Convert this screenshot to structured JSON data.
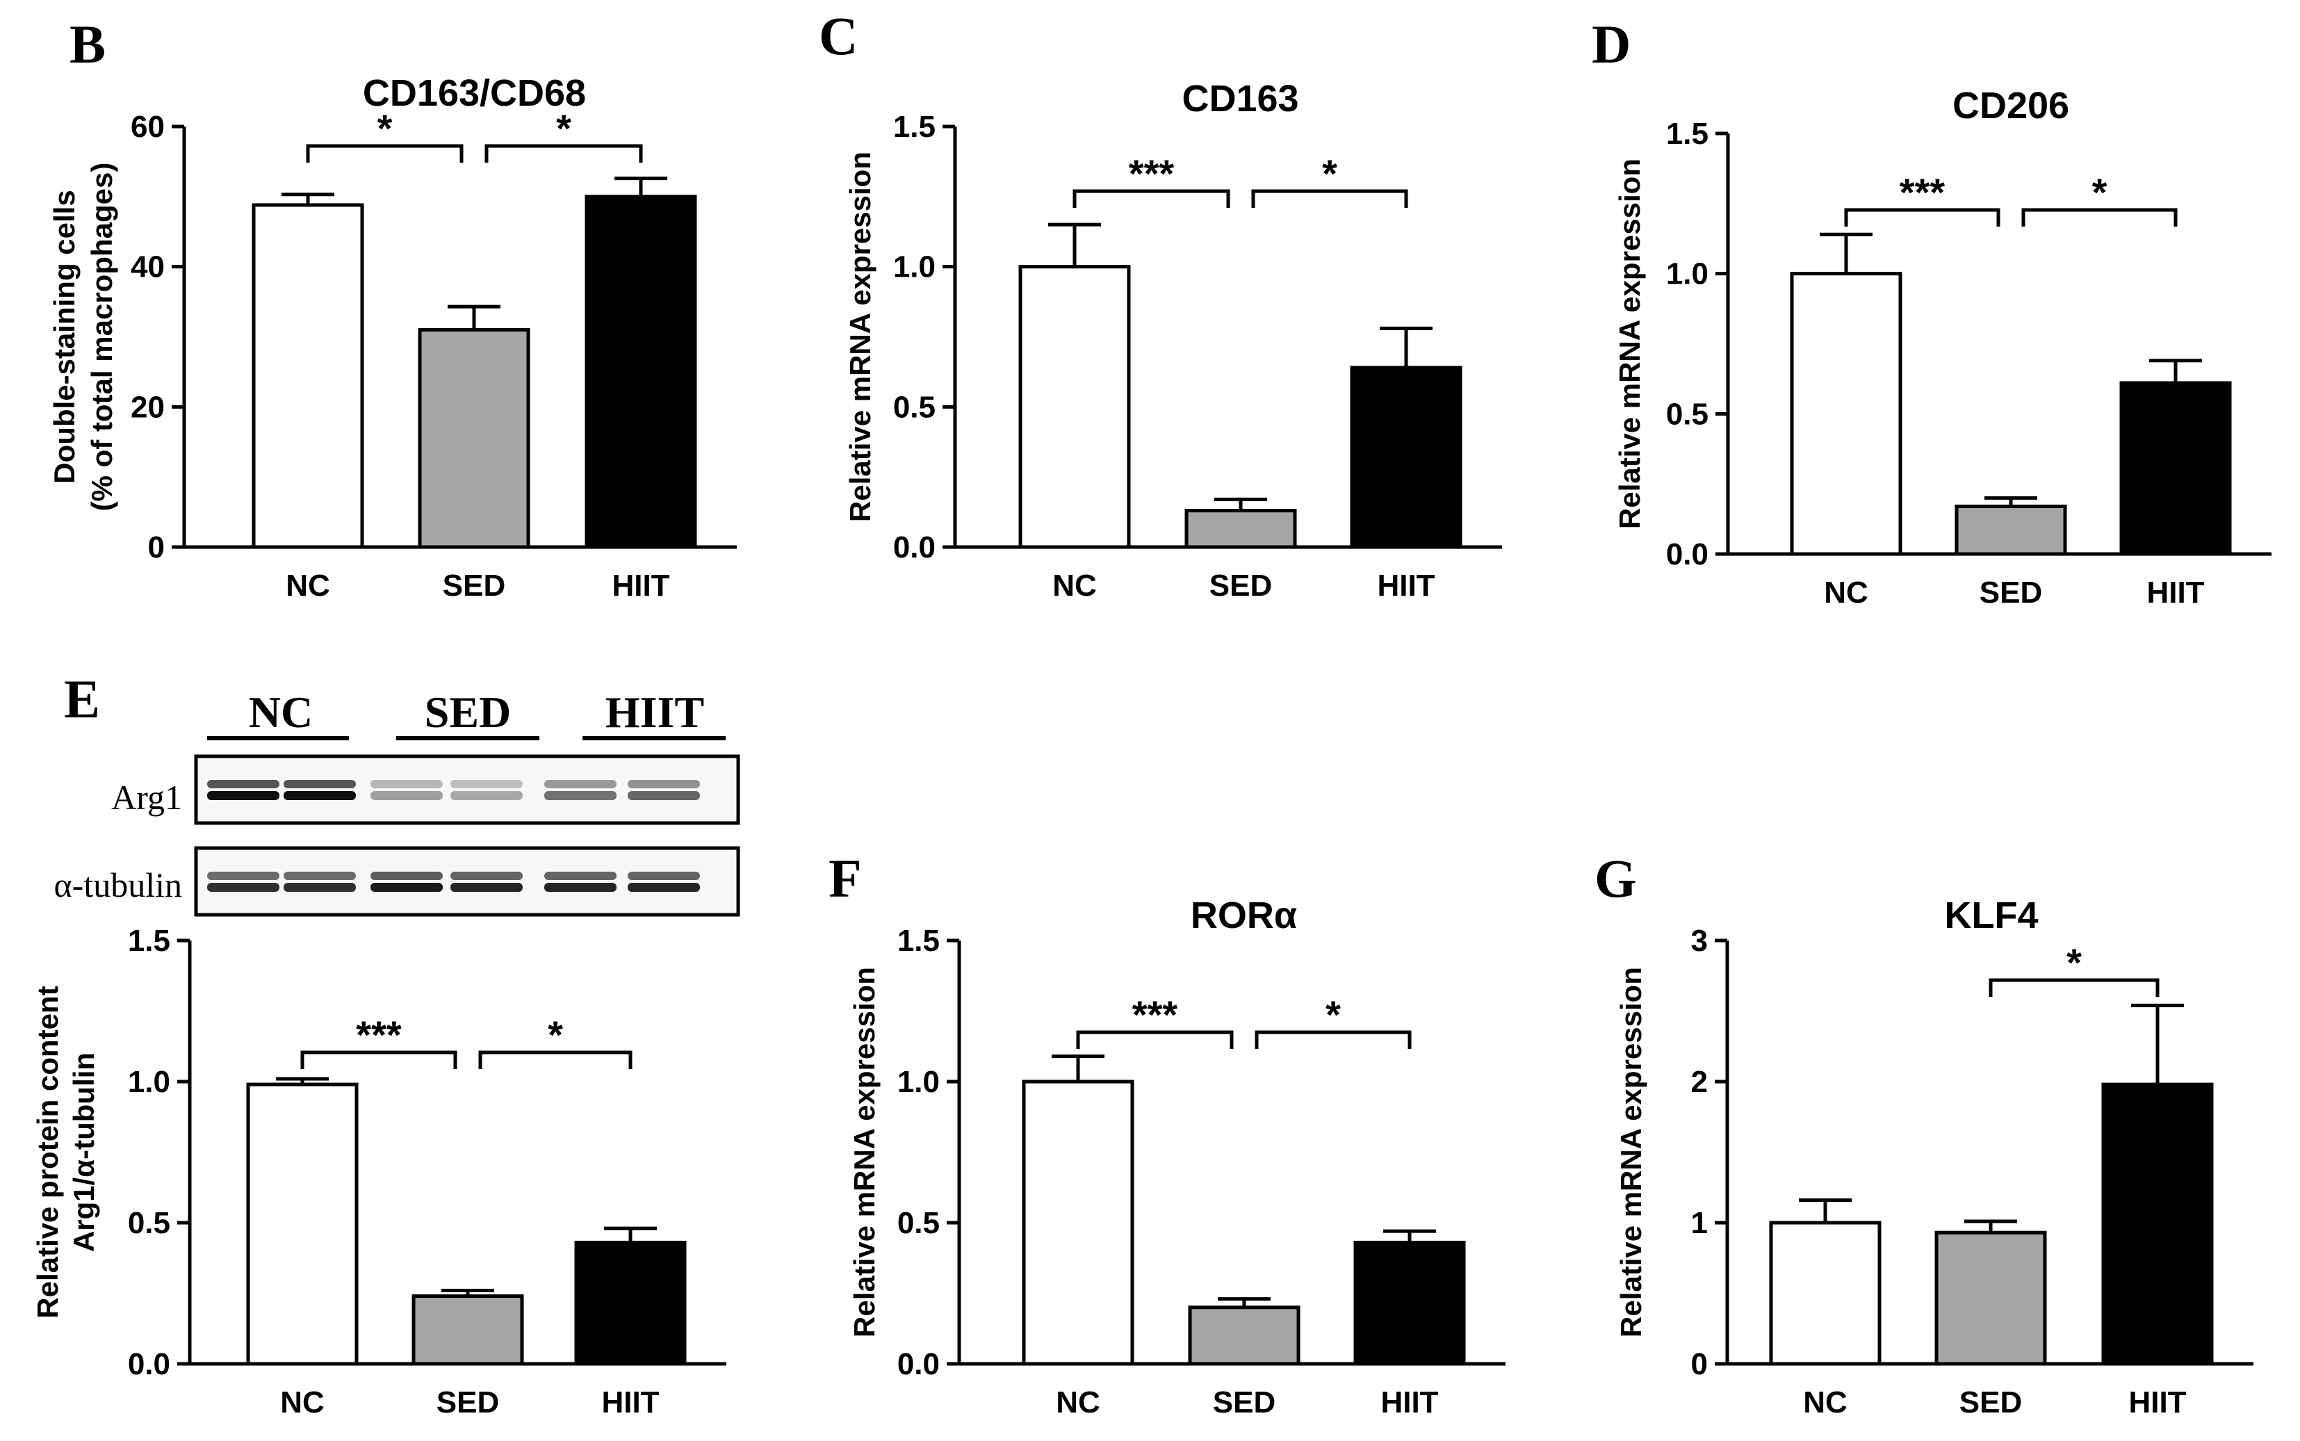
{
  "colors": {
    "NC": "#ffffff",
    "SED": "#a6a6a6",
    "HIIT": "#000000",
    "stroke": "#000000"
  },
  "chart_data": [
    {
      "panel": "B",
      "type": "bar",
      "title": "CD163/CD68",
      "ylabel": [
        "Double-staining cells",
        "(% of total macrophages)"
      ],
      "categories": [
        "NC",
        "SED",
        "HIIT"
      ],
      "values": [
        48.8,
        31.0,
        50.0
      ],
      "errors": [
        1.5,
        3.3,
        2.6
      ],
      "ylim": [
        0,
        60
      ],
      "yticks": [
        0,
        20,
        40,
        60
      ],
      "ytick_labels": [
        "0",
        "20",
        "40",
        "60"
      ],
      "significance": [
        {
          "from": 0,
          "to": 1,
          "label": "*"
        },
        {
          "from": 1,
          "to": 2,
          "label": "*"
        }
      ]
    },
    {
      "panel": "C",
      "type": "bar",
      "title": "CD163",
      "ylabel": [
        "Relative mRNA expression"
      ],
      "categories": [
        "NC",
        "SED",
        "HIIT"
      ],
      "values": [
        1.0,
        0.13,
        0.64
      ],
      "errors": [
        0.15,
        0.04,
        0.14
      ],
      "ylim": [
        0,
        1.5
      ],
      "yticks": [
        0,
        0.5,
        1.0,
        1.5
      ],
      "ytick_labels": [
        "0.0",
        "0.5",
        "1.0",
        "1.5"
      ],
      "significance": [
        {
          "from": 0,
          "to": 1,
          "label": "***"
        },
        {
          "from": 1,
          "to": 2,
          "label": "*"
        }
      ]
    },
    {
      "panel": "D",
      "type": "bar",
      "title": "CD206",
      "ylabel": [
        "Relative mRNA expression"
      ],
      "categories": [
        "NC",
        "SED",
        "HIIT"
      ],
      "values": [
        1.0,
        0.17,
        0.61
      ],
      "errors": [
        0.14,
        0.03,
        0.08
      ],
      "ylim": [
        0,
        1.5
      ],
      "yticks": [
        0,
        0.5,
        1.0,
        1.5
      ],
      "ytick_labels": [
        "0.0",
        "0.5",
        "1.0",
        "1.5"
      ],
      "significance": [
        {
          "from": 0,
          "to": 1,
          "label": "***"
        },
        {
          "from": 1,
          "to": 2,
          "label": "*"
        }
      ]
    },
    {
      "panel": "E",
      "type": "bar",
      "title": "",
      "ylabel": [
        "Relative protein content",
        "Arg1/α-tubulin"
      ],
      "categories": [
        "NC",
        "SED",
        "HIIT"
      ],
      "values": [
        0.99,
        0.24,
        0.43
      ],
      "errors": [
        0.02,
        0.02,
        0.05
      ],
      "ylim": [
        0,
        1.5
      ],
      "yticks": [
        0,
        0.5,
        1.0,
        1.5
      ],
      "ytick_labels": [
        "0.0",
        "0.5",
        "1.0",
        "1.5"
      ],
      "significance": [
        {
          "from": 0,
          "to": 1,
          "label": "***"
        },
        {
          "from": 1,
          "to": 2,
          "label": "*"
        }
      ]
    },
    {
      "panel": "F",
      "type": "bar",
      "title": "RORα",
      "ylabel": [
        "Relative mRNA expression"
      ],
      "categories": [
        "NC",
        "SED",
        "HIIT"
      ],
      "values": [
        1.0,
        0.2,
        0.43
      ],
      "errors": [
        0.09,
        0.03,
        0.04
      ],
      "ylim": [
        0,
        1.5
      ],
      "yticks": [
        0,
        0.5,
        1.0,
        1.5
      ],
      "ytick_labels": [
        "0.0",
        "0.5",
        "1.0",
        "1.5"
      ],
      "significance": [
        {
          "from": 0,
          "to": 1,
          "label": "***"
        },
        {
          "from": 1,
          "to": 2,
          "label": "*"
        }
      ]
    },
    {
      "panel": "G",
      "type": "bar",
      "title": "KLF4",
      "ylabel": [
        "Relative mRNA expression"
      ],
      "categories": [
        "NC",
        "SED",
        "HIIT"
      ],
      "values": [
        1.0,
        0.93,
        1.98
      ],
      "errors": [
        0.16,
        0.08,
        0.56
      ],
      "ylim": [
        0,
        3
      ],
      "yticks": [
        0,
        1,
        2,
        3
      ],
      "ytick_labels": [
        "0",
        "1",
        "2",
        "3"
      ],
      "significance": [
        {
          "from": 1,
          "to": 2,
          "label": "*"
        }
      ]
    }
  ],
  "western_blot": {
    "groups": [
      "NC",
      "SED",
      "HIIT"
    ],
    "rows": [
      {
        "label": "Arg1",
        "intensities": [
          1.0,
          1.0,
          0.35,
          0.3,
          0.55,
          0.6
        ]
      },
      {
        "label": "α-tubulin",
        "intensities": [
          0.85,
          0.85,
          0.95,
          0.9,
          0.9,
          0.9
        ]
      }
    ]
  }
}
